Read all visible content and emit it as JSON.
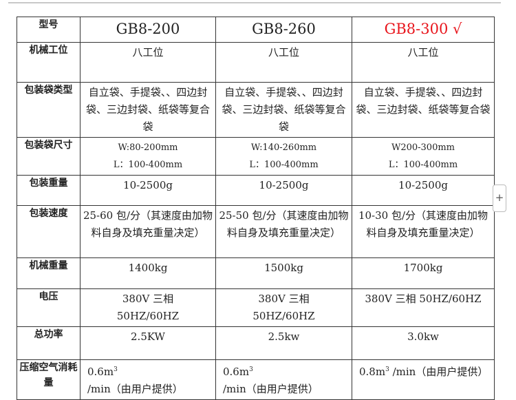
{
  "headers": {
    "model": "型号",
    "station": "机械工位",
    "bag_type": "包装袋类型",
    "bag_size": "包装袋尺寸",
    "pack_weight": "包装重量",
    "speed": "包装速度",
    "machine_weight": "机械重量",
    "voltage": "电压",
    "power": "总功率",
    "air": "压缩空气消耗量"
  },
  "columns": [
    {
      "model": "GB8-200",
      "station": "八工位",
      "bag_type": "自立袋、手提袋、、四边封袋、三边封袋、纸袋等复合袋",
      "bag_w": "W:80-200mm",
      "bag_l": "L：100-400mm",
      "pack_weight": "10-2500g",
      "speed": "25-60 包/分（其速度由加物料自身及填充重量决定）",
      "machine_weight": "1400kg",
      "voltage": "380V 三相 50HZ/60HZ",
      "power": "2.5KW",
      "air_a": "0.6m",
      "air_sup": "3",
      "air_b": " /min（由用户提供）"
    },
    {
      "model": "GB8-260",
      "station": "八工位",
      "bag_type": "自立袋、手提袋、、四边封袋、三边封袋、纸袋等复合袋",
      "bag_w": "W:140-260mm",
      "bag_l": "L：100-400mm",
      "pack_weight": "10-2500g",
      "speed": "25-50 包/分（其速度由加物料自身及填充重量决定）",
      "machine_weight": "1500kg",
      "voltage": "380V 三相 50HZ/60HZ",
      "power": "2.5kw",
      "air_a": "0.6m",
      "air_sup": "3",
      "air_b": " /min（由用户提供）"
    },
    {
      "model": "GB8-300 √",
      "station": "八工位",
      "bag_type": "自立袋、手提袋、、四边封袋、三边封袋、纸袋等复合袋",
      "bag_w": "W200-300mm",
      "bag_l": "L：100-400mm",
      "pack_weight": "10-2500g",
      "speed": "10-30 包/分（其速度由加物料自身及填充重量决定）",
      "machine_weight": "1700kg",
      "voltage": "380V 三相 50HZ/60HZ",
      "power": "3.0kw",
      "air_a": "0.8m",
      "air_sup": "3",
      "air_b": " /min（由用户提供）"
    }
  ],
  "highlight_color": "#e8141b",
  "add_button": "+"
}
